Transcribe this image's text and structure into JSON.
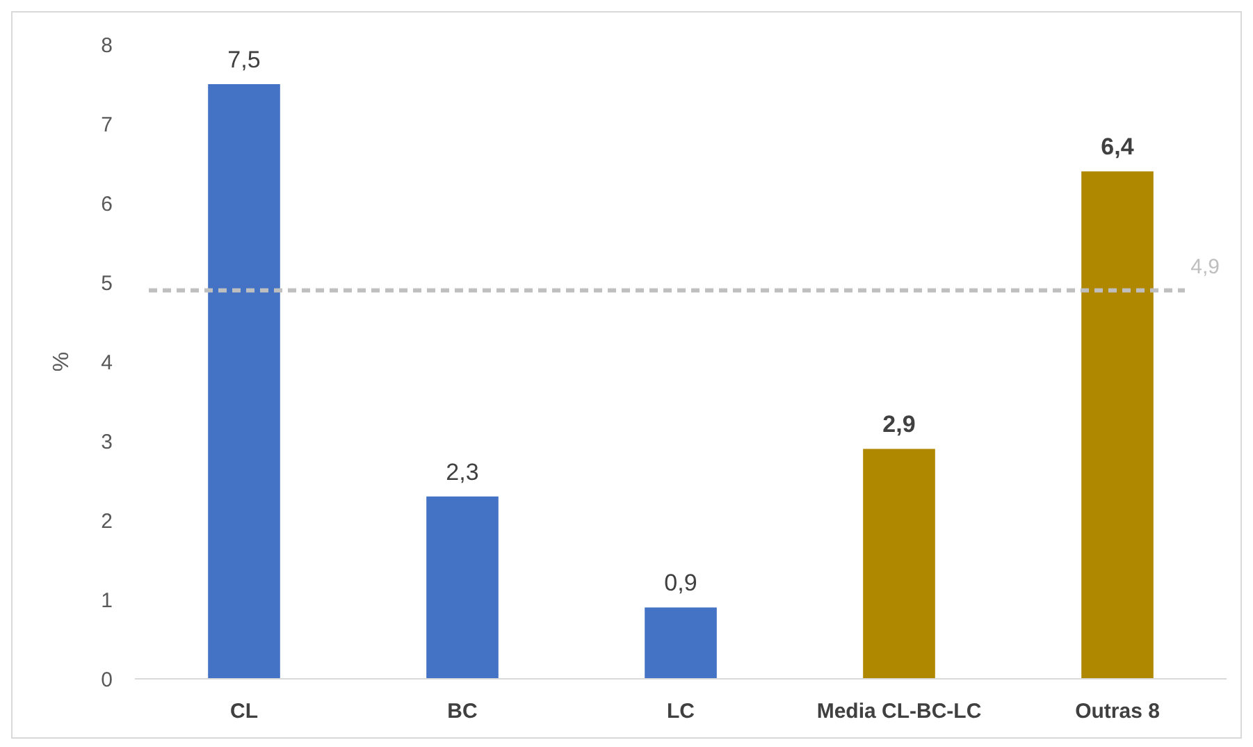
{
  "chart_data": {
    "type": "bar",
    "ylabel": "%",
    "categories": [
      "CL",
      "BC",
      "LC",
      "Media CL-BC-LC",
      "Outras 8"
    ],
    "series": [
      {
        "color": "#4472c4",
        "values": [
          7.5,
          2.3,
          0.9,
          null,
          null
        ],
        "value_labels": [
          "7,5",
          "2,3",
          "0,9",
          null,
          null
        ]
      },
      {
        "color": "#b08800",
        "values": [
          null,
          null,
          null,
          2.9,
          6.4
        ],
        "value_labels": [
          null,
          null,
          null,
          "2,9",
          "6,4"
        ]
      }
    ],
    "ylim": [
      0,
      8
    ],
    "yticks": [
      0,
      1,
      2,
      3,
      4,
      5,
      6,
      7,
      8
    ],
    "grid": false,
    "ref_lines": [
      {
        "axis": "y",
        "value": 4.9,
        "label": "4,9",
        "color": "#bfbfbf",
        "line_style": "dashed"
      }
    ]
  }
}
